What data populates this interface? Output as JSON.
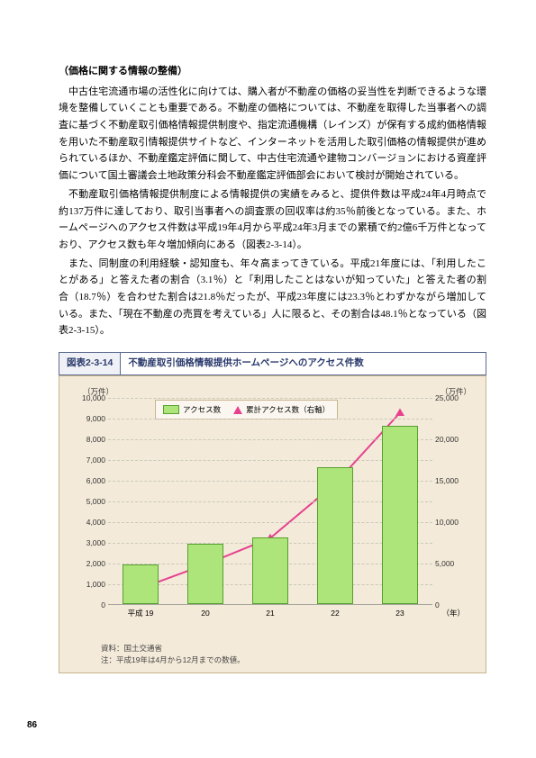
{
  "heading": "（価格に関する情報の整備）",
  "para1": "中古住宅流通市場の活性化に向けては、購入者が不動産の価格の妥当性を判断できるような環境を整備していくことも重要である。不動産の価格については、不動産を取得した当事者への調査に基づく不動産取引価格情報提供制度や、指定流通機構（レインズ）が保有する成約価格情報を用いた不動産取引情報提供サイトなど、インターネットを活用した取引価格の情報提供が進められているほか、不動産鑑定評価に関して、中古住宅流通や建物コンバージョンにおける資産評価について国土審議会土地政策分科会不動産鑑定評価部会において検討が開始されている。",
  "para2": "不動産取引価格情報提供制度による情報提供の実績をみると、提供件数は平成24年4月時点で約137万件に達しており、取引当事者への調査票の回収率は約35％前後となっている。また、ホームページへのアクセス件数は平成19年4月から平成24年3月までの累積で約2億6千万件となっており、アクセス数も年々増加傾向にある（図表2-3-14）。",
  "para3": "また、同制度の利用経験・認知度も、年々高まってきている。平成21年度には、「利用したことがある」と答えた者の割合（3.1％）と「利用したことはないが知っていた」と答えた者の割合（18.7％）を合わせた割合は21.8％だったが、平成23年度には23.3％とわずかながら増加している。また、「現在不動産の売買を考えている」人に限ると、その割合は48.1％となっている（図表2-3-15）。",
  "figure": {
    "label": "図表2-3-14",
    "title": "不動産取引価格情報提供ホームページへのアクセス件数"
  },
  "chart": {
    "y_left_unit": "（万件）",
    "y_right_unit": "（万件）",
    "x_unit": "（年）",
    "legend_bar": "アクセス数",
    "legend_line": "累計アクセス数（右軸）",
    "bar_color": "#aee57a",
    "bar_border": "#55a02e",
    "line_color": "#e6418f",
    "marker_color": "#e6418f",
    "background": "#f4ead9",
    "grid_color": "#c9c9bd",
    "y_left_max": 10000,
    "y_left_step": 1000,
    "y_right_max": 25000,
    "y_right_step": 5000,
    "categories": [
      "平成 19",
      "20",
      "21",
      "22",
      "23"
    ],
    "bar_values": [
      1900,
      2900,
      3200,
      6600,
      8600
    ],
    "line_values": [
      1900,
      4800,
      8000,
      14600,
      23200
    ]
  },
  "footnote1": "資料：国土交通省",
  "footnote2": "注：平成19年は4月から12月までの数値。",
  "page_number": "86"
}
